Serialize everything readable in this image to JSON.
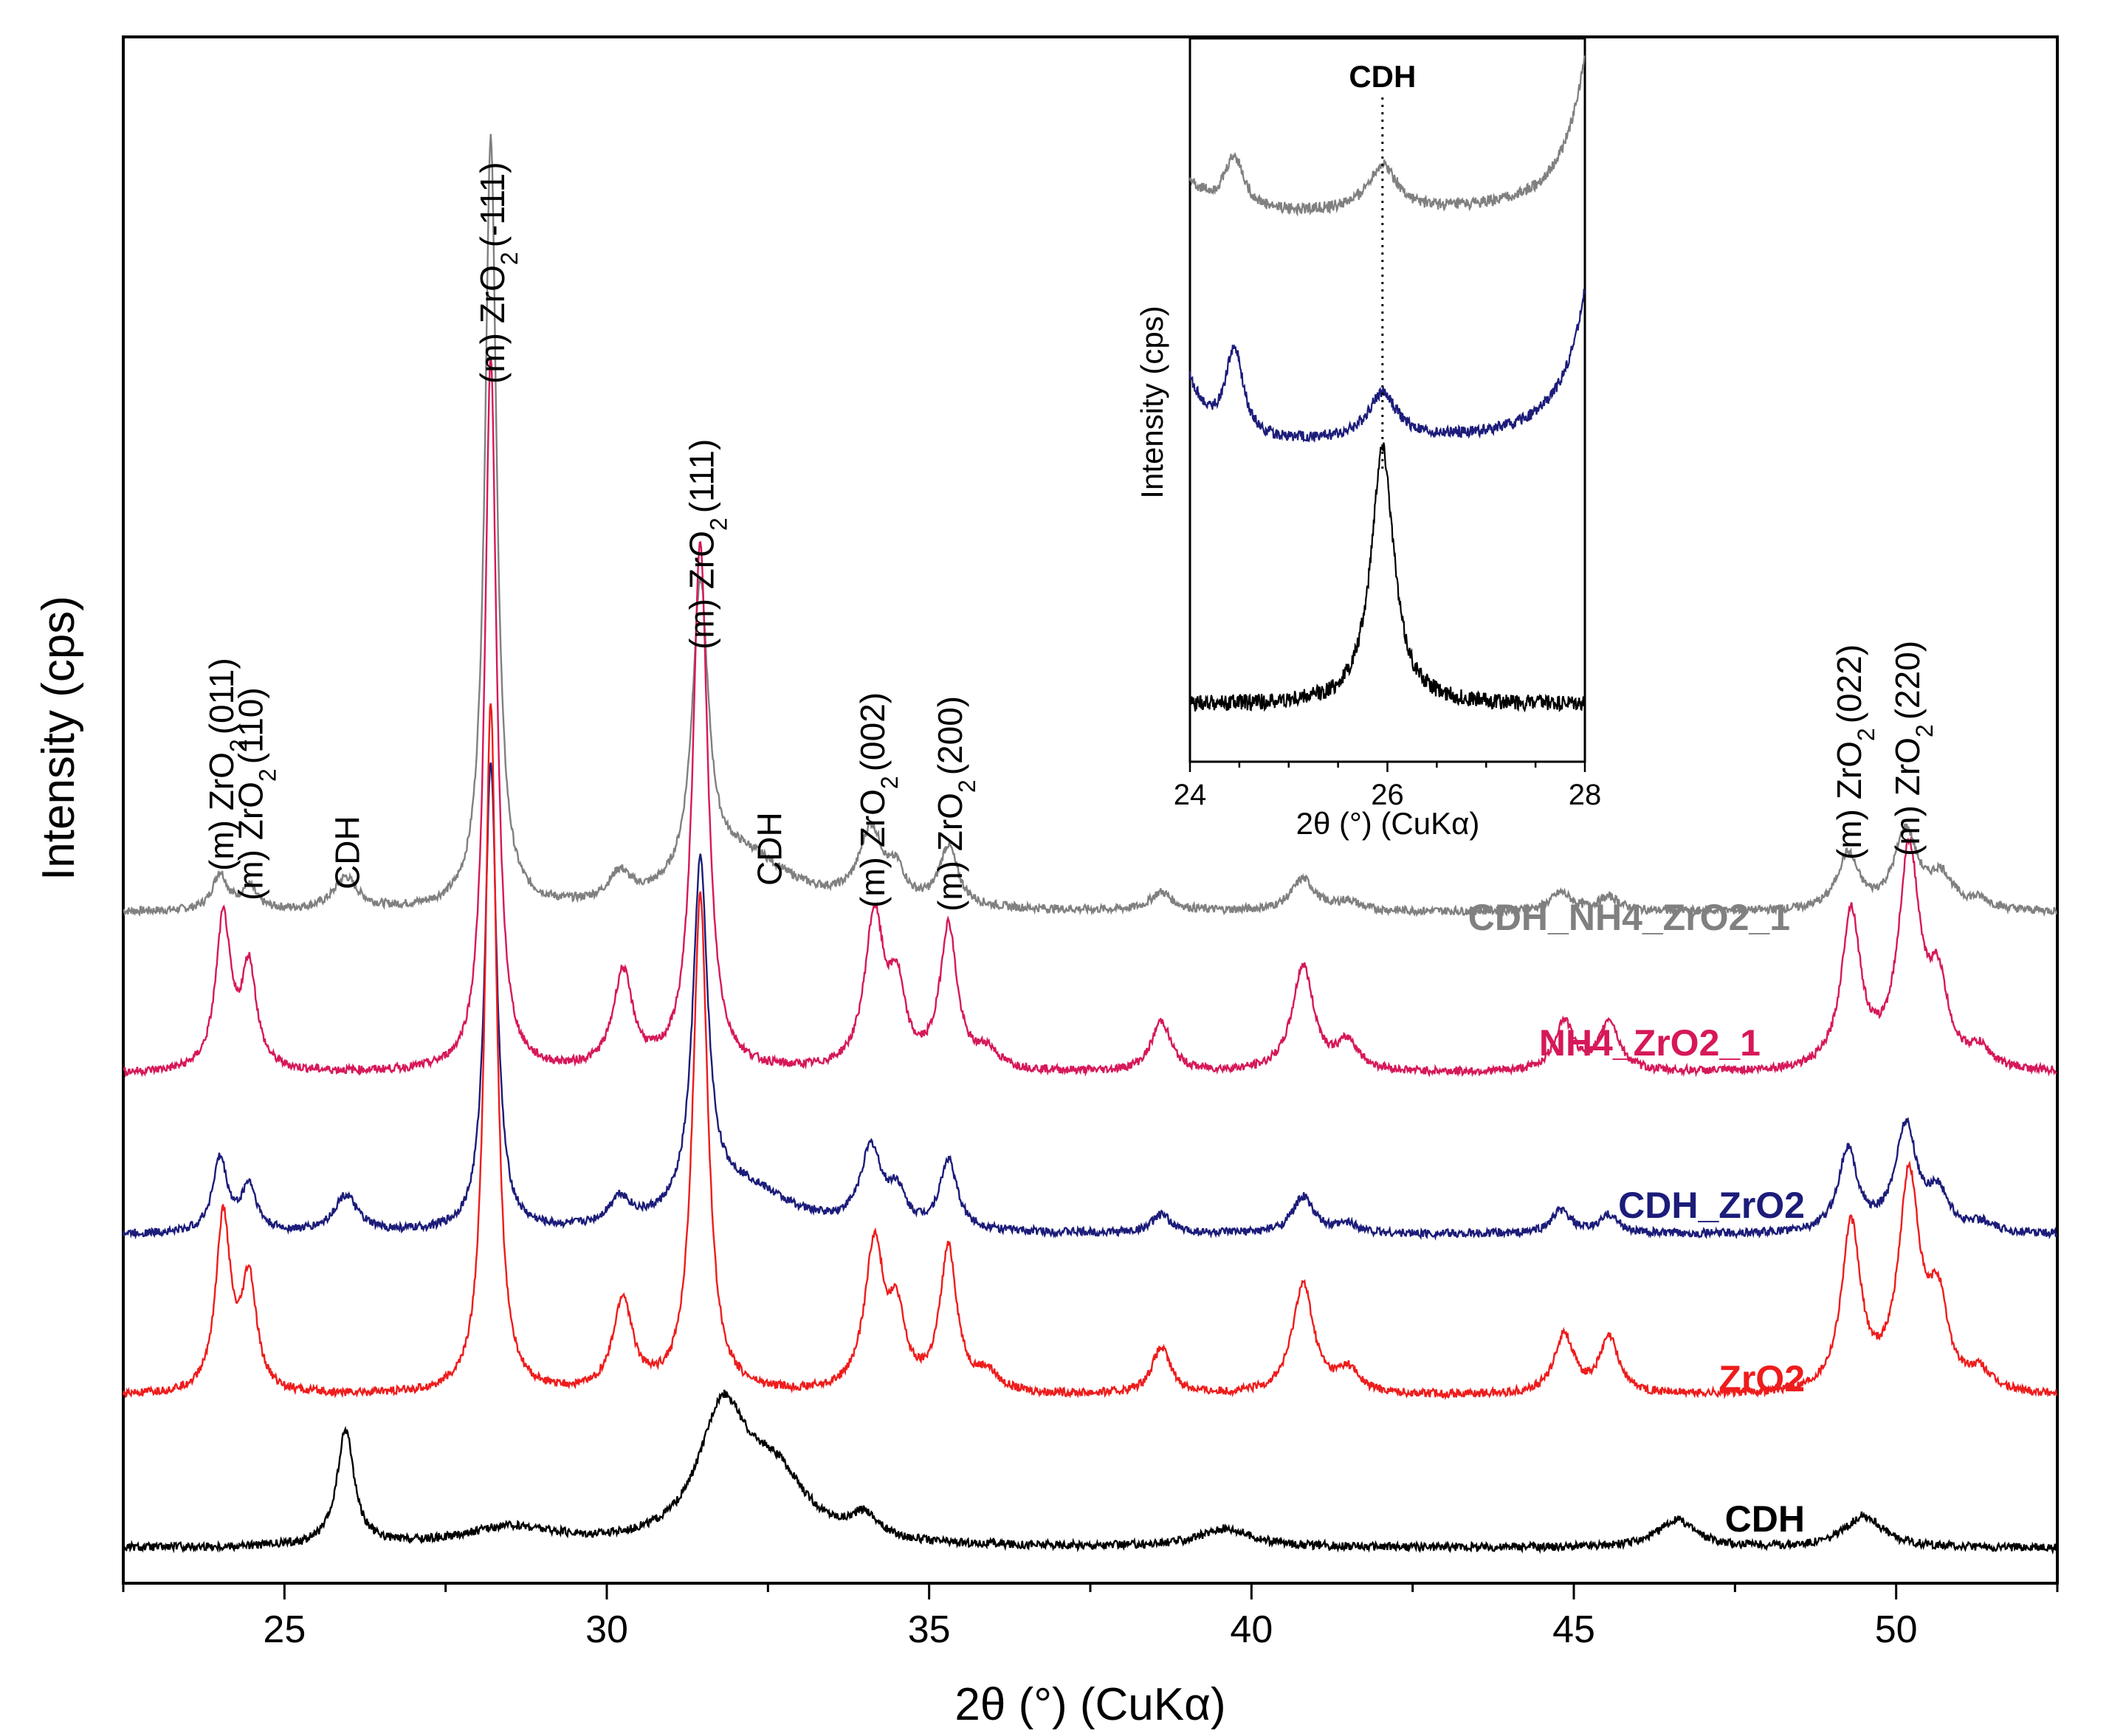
{
  "chart_data": {
    "type": "line",
    "title": "",
    "xlabel": "2θ (°) (CuKα)",
    "ylabel": "Intensity (cps)",
    "xlim": [
      22.5,
      52.5
    ],
    "xticks": [
      25,
      30,
      35,
      40,
      45,
      50
    ],
    "grid": false,
    "series_label_placement": "right, above each trace",
    "series": [
      {
        "name": "CDH_NH4_ZrO2_1",
        "color": "#808080",
        "baseline": 1.4,
        "peaks": [
          {
            "x": 24.0,
            "h": 0.08,
            "w": 0.14
          },
          {
            "x": 24.45,
            "h": 0.05,
            "w": 0.14
          },
          {
            "x": 25.95,
            "h": 0.07,
            "w": 0.22
          },
          {
            "x": 28.2,
            "h": 1.68,
            "w": 0.11
          },
          {
            "x": 30.2,
            "h": 0.06,
            "w": 0.2
          },
          {
            "x": 31.45,
            "h": 0.64,
            "w": 0.15
          },
          {
            "x": 32.1,
            "h": 0.12,
            "w": 0.9
          },
          {
            "x": 34.1,
            "h": 0.16,
            "w": 0.22
          },
          {
            "x": 34.5,
            "h": 0.06,
            "w": 0.15
          },
          {
            "x": 35.3,
            "h": 0.13,
            "w": 0.17
          },
          {
            "x": 38.6,
            "h": 0.04,
            "w": 0.2
          },
          {
            "x": 40.8,
            "h": 0.07,
            "w": 0.22
          },
          {
            "x": 41.5,
            "h": 0.02,
            "w": 0.2
          },
          {
            "x": 44.8,
            "h": 0.04,
            "w": 0.2
          },
          {
            "x": 45.55,
            "h": 0.03,
            "w": 0.2
          },
          {
            "x": 49.25,
            "h": 0.12,
            "w": 0.2
          },
          {
            "x": 50.15,
            "h": 0.17,
            "w": 0.22
          },
          {
            "x": 50.7,
            "h": 0.07,
            "w": 0.22
          },
          {
            "x": 51.3,
            "h": 0.02,
            "w": 0.2
          }
        ]
      },
      {
        "name": "NH4_ZrO2_1",
        "color": "#d6185a",
        "baseline": 1.05,
        "peaks": [
          {
            "x": 24.05,
            "h": 0.33,
            "w": 0.14
          },
          {
            "x": 24.45,
            "h": 0.22,
            "w": 0.14
          },
          {
            "x": 28.2,
            "h": 1.55,
            "w": 0.11
          },
          {
            "x": 30.25,
            "h": 0.21,
            "w": 0.18
          },
          {
            "x": 31.45,
            "h": 1.15,
            "w": 0.14
          },
          {
            "x": 34.15,
            "h": 0.33,
            "w": 0.18
          },
          {
            "x": 34.5,
            "h": 0.16,
            "w": 0.15
          },
          {
            "x": 35.3,
            "h": 0.31,
            "w": 0.16
          },
          {
            "x": 35.9,
            "h": 0.04,
            "w": 0.2
          },
          {
            "x": 38.6,
            "h": 0.11,
            "w": 0.18
          },
          {
            "x": 40.8,
            "h": 0.23,
            "w": 0.2
          },
          {
            "x": 41.5,
            "h": 0.06,
            "w": 0.2
          },
          {
            "x": 44.85,
            "h": 0.11,
            "w": 0.18
          },
          {
            "x": 45.55,
            "h": 0.11,
            "w": 0.18
          },
          {
            "x": 49.3,
            "h": 0.34,
            "w": 0.18
          },
          {
            "x": 50.2,
            "h": 0.47,
            "w": 0.2
          },
          {
            "x": 50.65,
            "h": 0.17,
            "w": 0.18
          },
          {
            "x": 51.3,
            "h": 0.04,
            "w": 0.2
          }
        ]
      },
      {
        "name": "CDH_ZrO2",
        "color": "#1c1c7a",
        "baseline": 0.7,
        "peaks": [
          {
            "x": 24.0,
            "h": 0.16,
            "w": 0.14
          },
          {
            "x": 24.45,
            "h": 0.1,
            "w": 0.14
          },
          {
            "x": 25.95,
            "h": 0.08,
            "w": 0.22
          },
          {
            "x": 28.2,
            "h": 1.02,
            "w": 0.11
          },
          {
            "x": 30.2,
            "h": 0.06,
            "w": 0.2
          },
          {
            "x": 31.45,
            "h": 0.75,
            "w": 0.14
          },
          {
            "x": 32.1,
            "h": 0.1,
            "w": 0.9
          },
          {
            "x": 34.1,
            "h": 0.17,
            "w": 0.2
          },
          {
            "x": 34.5,
            "h": 0.07,
            "w": 0.15
          },
          {
            "x": 35.3,
            "h": 0.15,
            "w": 0.16
          },
          {
            "x": 38.6,
            "h": 0.04,
            "w": 0.18
          },
          {
            "x": 40.8,
            "h": 0.08,
            "w": 0.2
          },
          {
            "x": 41.5,
            "h": 0.02,
            "w": 0.2
          },
          {
            "x": 44.8,
            "h": 0.05,
            "w": 0.18
          },
          {
            "x": 45.55,
            "h": 0.04,
            "w": 0.18
          },
          {
            "x": 49.25,
            "h": 0.18,
            "w": 0.18
          },
          {
            "x": 50.15,
            "h": 0.23,
            "w": 0.2
          },
          {
            "x": 50.65,
            "h": 0.08,
            "w": 0.2
          },
          {
            "x": 51.3,
            "h": 0.02,
            "w": 0.2
          }
        ]
      },
      {
        "name": "ZrO2",
        "color": "#ee1c1c",
        "baseline": 0.35,
        "peaks": [
          {
            "x": 24.05,
            "h": 0.38,
            "w": 0.14
          },
          {
            "x": 24.45,
            "h": 0.24,
            "w": 0.14
          },
          {
            "x": 28.2,
            "h": 1.5,
            "w": 0.11
          },
          {
            "x": 30.25,
            "h": 0.2,
            "w": 0.18
          },
          {
            "x": 31.45,
            "h": 1.08,
            "w": 0.14
          },
          {
            "x": 34.15,
            "h": 0.32,
            "w": 0.18
          },
          {
            "x": 34.5,
            "h": 0.15,
            "w": 0.15
          },
          {
            "x": 35.3,
            "h": 0.31,
            "w": 0.16
          },
          {
            "x": 35.9,
            "h": 0.04,
            "w": 0.2
          },
          {
            "x": 38.6,
            "h": 0.1,
            "w": 0.18
          },
          {
            "x": 40.8,
            "h": 0.24,
            "w": 0.2
          },
          {
            "x": 41.5,
            "h": 0.05,
            "w": 0.2
          },
          {
            "x": 44.85,
            "h": 0.13,
            "w": 0.18
          },
          {
            "x": 45.55,
            "h": 0.12,
            "w": 0.18
          },
          {
            "x": 49.3,
            "h": 0.36,
            "w": 0.18
          },
          {
            "x": 50.2,
            "h": 0.46,
            "w": 0.2
          },
          {
            "x": 50.65,
            "h": 0.18,
            "w": 0.18
          },
          {
            "x": 51.3,
            "h": 0.04,
            "w": 0.2
          }
        ]
      },
      {
        "name": "CDH",
        "color": "#000000",
        "baseline": 0.02,
        "peaks": [
          {
            "x": 25.95,
            "h": 0.25,
            "w": 0.16
          },
          {
            "x": 28.5,
            "h": 0.04,
            "w": 0.9
          },
          {
            "x": 31.8,
            "h": 0.28,
            "w": 0.45
          },
          {
            "x": 32.6,
            "h": 0.14,
            "w": 0.6
          },
          {
            "x": 34.0,
            "h": 0.05,
            "w": 0.25
          },
          {
            "x": 39.6,
            "h": 0.04,
            "w": 0.5
          },
          {
            "x": 46.6,
            "h": 0.06,
            "w": 0.35
          },
          {
            "x": 49.5,
            "h": 0.07,
            "w": 0.35
          }
        ]
      }
    ],
    "annotations": [
      {
        "text": "(m) ZrO",
        "sub": "2",
        "suffix": "(011)",
        "x": 24.0
      },
      {
        "text": "(m) ZrO",
        "sub": "2",
        "suffix": "(110)",
        "x": 24.45
      },
      {
        "text": "CDH",
        "sub": "",
        "suffix": "",
        "x": 25.95
      },
      {
        "text": "(m) ZrO",
        "sub": "2",
        "suffix": "(-111)",
        "x": 28.2
      },
      {
        "text": "(m) ZrO",
        "sub": "2",
        "suffix": "(111)",
        "x": 31.45
      },
      {
        "text": "CDH",
        "sub": "",
        "suffix": "",
        "x": 32.5
      },
      {
        "text": "(m) ZrO",
        "sub": "2",
        "suffix": "(002)",
        "x": 34.1
      },
      {
        "text": "(m) ZrO",
        "sub": "2",
        "suffix": "(200)",
        "x": 35.3
      },
      {
        "text": "(m) ZrO",
        "sub": "2",
        "suffix": "(022)",
        "x": 49.25
      },
      {
        "text": "(m) ZrO",
        "sub": "2",
        "suffix": "(220)",
        "x": 50.15
      }
    ],
    "inset": {
      "xlabel": "2θ (°) (CuKα)",
      "ylabel": "Intensity (cps)",
      "xlim": [
        24,
        28
      ],
      "xticks": [
        24,
        26,
        28
      ],
      "marker_label": "CDH",
      "marker_x": 25.95
    }
  }
}
